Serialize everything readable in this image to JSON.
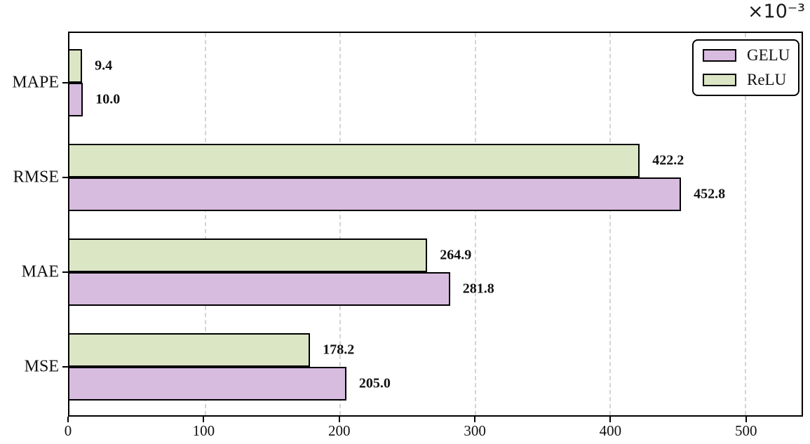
{
  "figure": {
    "background": "#ffffff",
    "text_color": "#111111"
  },
  "chart_data": {
    "type": "bar",
    "orientation": "horizontal",
    "title": "",
    "xlabel": "",
    "ylabel": "",
    "offset_text": "×10⁻³",
    "categories": [
      "MAPE",
      "RMSE",
      "MAE",
      "MSE"
    ],
    "series": [
      {
        "name": "GELU",
        "color": "#d8bce0",
        "values": [
          10.0,
          452.8,
          281.8,
          205.0
        ],
        "labels": [
          "10.0",
          "452.8",
          "281.8",
          "205.0"
        ]
      },
      {
        "name": "ReLU",
        "color": "#dbe6c5",
        "values": [
          9.4,
          422.2,
          264.9,
          178.2
        ],
        "labels": [
          "9.4",
          "422.2",
          "264.9",
          "178.2"
        ]
      }
    ],
    "group_order_top_to_bottom": [
      "ReLU",
      "GELU"
    ],
    "xticks": [
      0,
      100,
      200,
      300,
      400,
      500
    ],
    "xtick_labels": [
      "0",
      "100",
      "200",
      "300",
      "400",
      "500"
    ],
    "xlim": [
      0,
      542
    ],
    "grid": {
      "axis": "x",
      "style": "dashed",
      "color": "#d4d4d4"
    },
    "legend": {
      "position": "upper-right",
      "entries": [
        "GELU",
        "ReLU"
      ]
    },
    "bar_edge_color": "#000000"
  }
}
